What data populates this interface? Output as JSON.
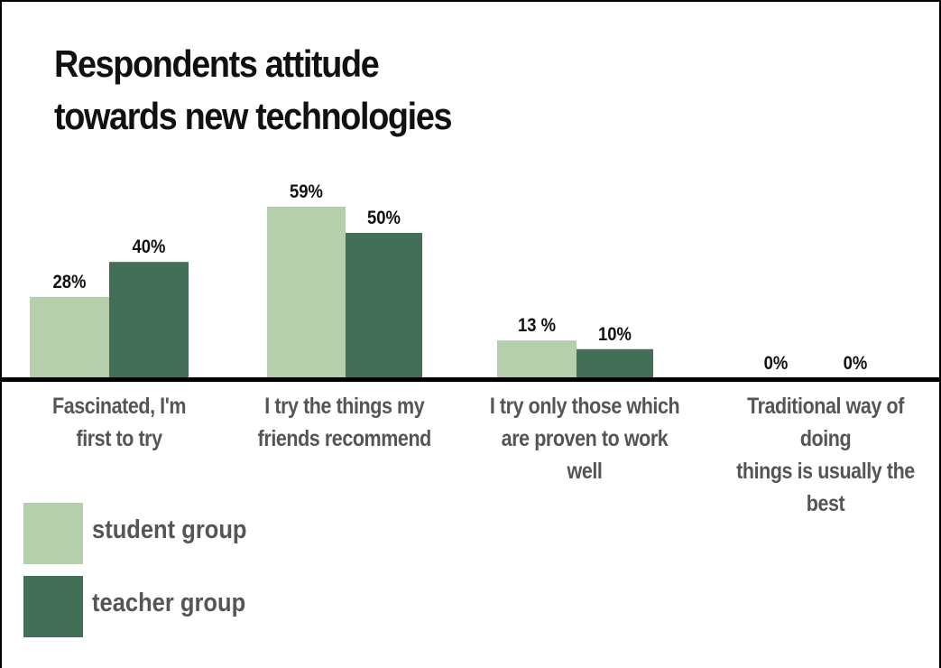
{
  "chart_data": {
    "type": "bar",
    "title": "Respondents attitude\ntowards new technologies",
    "categories": [
      "Fascinated, I'm\nfirst to try",
      "I try the things my\nfriends recommend",
      "I try only those which\nare proven to work well",
      "Traditional way of doing\nthings is usually the best"
    ],
    "series": [
      {
        "name": "student group",
        "values": [
          28,
          59,
          13,
          0
        ],
        "labels": [
          "28%",
          "59%",
          "13 %",
          "0%"
        ],
        "color": "#b5cfad"
      },
      {
        "name": "teacher group",
        "values": [
          40,
          50,
          10,
          0
        ],
        "labels": [
          "40%",
          "50%",
          "10%",
          "0%"
        ],
        "color": "#436e57"
      }
    ],
    "ylim": [
      0,
      59
    ],
    "grid": false,
    "legend": "bottom-left"
  }
}
